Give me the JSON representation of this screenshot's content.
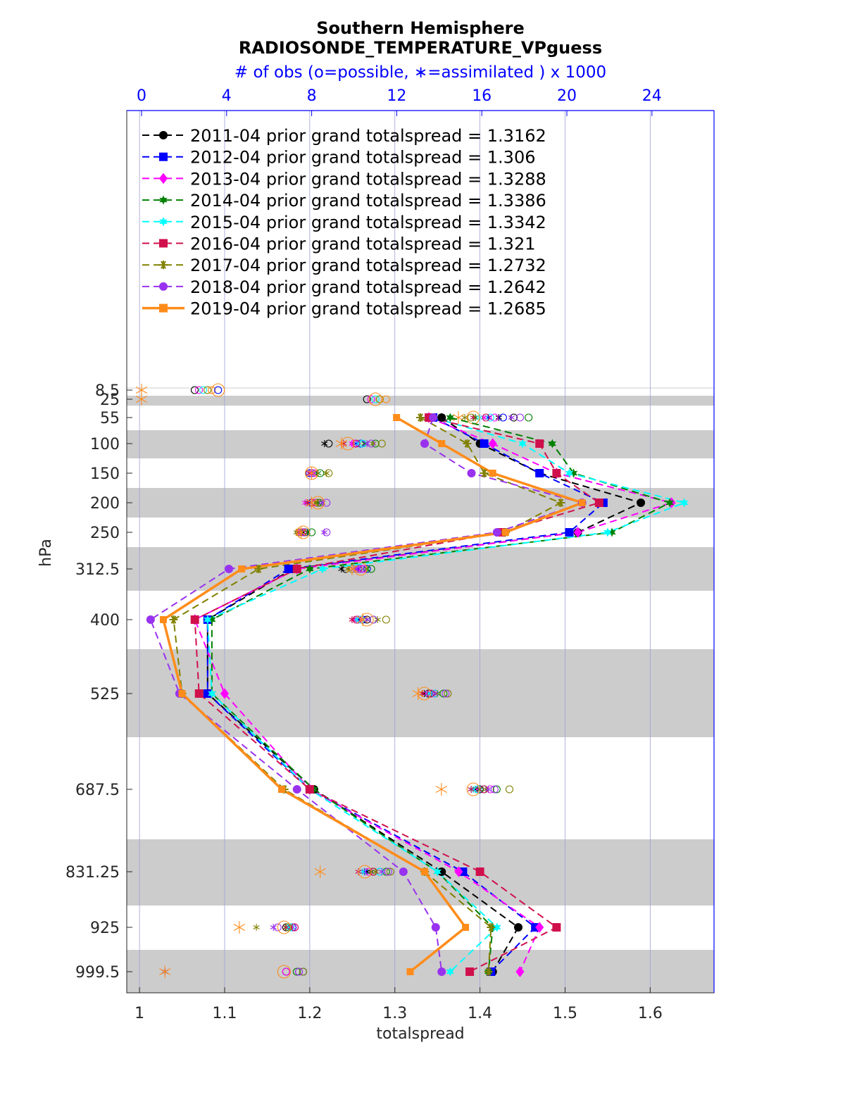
{
  "chart_data": {
    "type": "line",
    "title": "Southern Hemisphere",
    "subtitle": "RADIOSONDE_TEMPERATURE_VPguess",
    "top_axis_label": "# of obs (o=possible, ∗=assimilated ) x 1000",
    "xlabel": "totalspread",
    "ylabel": "hPa",
    "xlim": [
      0.985,
      1.675
    ],
    "x_ticks": [
      1,
      1.1,
      1.2,
      1.3,
      1.4,
      1.5,
      1.6
    ],
    "x_tick_labels": [
      "1",
      "1.1",
      "1.2",
      "1.3",
      "1.4",
      "1.5",
      "1.6"
    ],
    "top_ticks": [
      0,
      4,
      8,
      12,
      16,
      20,
      24
    ],
    "top_tick_labels": [
      "0",
      "4",
      "8",
      "12",
      "16",
      "20",
      "24"
    ],
    "levels": [
      8.5,
      25,
      55,
      100,
      150,
      200,
      250,
      312.5,
      400,
      525,
      687.5,
      831.25,
      925,
      999.5
    ],
    "level_labels": [
      "8.5",
      "25",
      "55",
      "100",
      "150",
      "200",
      "250",
      "312.5",
      "400",
      "525",
      "687.5",
      "831.25",
      "925",
      "999.5"
    ],
    "series": [
      {
        "name": "2011-04 prior grand totalspread = 1.3162",
        "color": "#000000",
        "marker": "circle",
        "style": "dashed",
        "levels": [
          55,
          100,
          150,
          200,
          250,
          312.5,
          400,
          525,
          687.5,
          831.25,
          925,
          999.5
        ],
        "values": [
          1.355,
          1.4,
          1.47,
          1.589,
          1.515,
          1.18,
          1.08,
          1.08,
          1.205,
          1.355,
          1.445,
          1.415
        ],
        "obs_possible_k": [
          17.5,
          8.8,
          8.0,
          8.0,
          7.6,
          9.6,
          10.6,
          13.5,
          15.9,
          10.9,
          6.8,
          6.8
        ],
        "obs_assimilated_k": [
          16.8,
          8.6,
          8.0,
          7.8,
          7.6,
          9.4,
          10.4,
          13.3,
          15.7,
          10.6,
          6.8,
          1.1
        ]
      },
      {
        "name": "2012-04 prior grand totalspread = 1.306",
        "color": "#0000ff",
        "marker": "square",
        "style": "dashed",
        "levels": [
          55,
          100,
          150,
          200,
          250,
          312.5,
          400,
          525,
          687.5,
          831.25,
          925,
          999.5
        ],
        "values": [
          1.345,
          1.405,
          1.47,
          1.545,
          1.505,
          1.175,
          1.08,
          1.08,
          1.2,
          1.38,
          1.465,
          1.413
        ],
        "obs_possible_k": [
          17.0,
          10.3,
          7.9,
          8.0,
          7.7,
          10.6,
          10.4,
          13.8,
          16.1,
          11.2,
          7.1,
          7.6
        ],
        "obs_assimilated_k": [
          16.3,
          10.1,
          7.9,
          7.9,
          7.5,
          10.2,
          10.2,
          13.6,
          15.5,
          10.5,
          7.0,
          1.1
        ]
      },
      {
        "name": "2013-04 prior grand totalspread = 1.3288",
        "color": "#ff00ff",
        "marker": "diamond",
        "style": "dashed",
        "levels": [
          55,
          100,
          150,
          200,
          250,
          312.5,
          400,
          525,
          687.5,
          831.25,
          925,
          999.5
        ],
        "values": [
          1.34,
          1.415,
          1.49,
          1.625,
          1.515,
          1.185,
          1.065,
          1.1,
          1.2,
          1.375,
          1.47,
          1.447
        ],
        "obs_possible_k": [
          16.6,
          10.0,
          8.1,
          8.2,
          7.5,
          10.4,
          10.2,
          13.6,
          16.4,
          10.7,
          7.2,
          6.8
        ],
        "obs_assimilated_k": [
          16.1,
          9.9,
          8.1,
          7.7,
          7.4,
          10.1,
          10.0,
          13.4,
          15.8,
          10.4,
          7.1,
          1.1
        ]
      },
      {
        "name": "2014-04 prior grand totalspread = 1.3386",
        "color": "#008000",
        "marker": "hexagram",
        "style": "dashed",
        "levels": [
          55,
          100,
          150,
          200,
          250,
          312.5,
          400,
          525,
          687.5,
          831.25,
          925,
          999.5
        ],
        "values": [
          1.365,
          1.485,
          1.51,
          1.623,
          1.555,
          1.2,
          1.085,
          1.085,
          1.205,
          1.35,
          1.415,
          1.41
        ],
        "obs_possible_k": [
          18.2,
          11.0,
          8.4,
          8.3,
          8.0,
          10.8,
          10.9,
          14.2,
          16.7,
          11.5,
          6.9,
          7.3
        ],
        "obs_assimilated_k": [
          15.7,
          10.5,
          8.3,
          8.3,
          7.8,
          10.6,
          10.6,
          13.9,
          15.9,
          10.8,
          6.9,
          1.1
        ]
      },
      {
        "name": "2015-04 prior grand totalspread = 1.3342",
        "color": "#00ffff",
        "marker": "hexagram",
        "style": "dashed",
        "levels": [
          55,
          100,
          150,
          200,
          250,
          312.5,
          400,
          525,
          687.5,
          831.25,
          925,
          999.5
        ],
        "values": [
          1.345,
          1.45,
          1.505,
          1.64,
          1.55,
          1.215,
          1.08,
          1.085,
          1.2,
          1.35,
          1.42,
          1.365
        ],
        "obs_possible_k": [
          16.4,
          10.4,
          8.0,
          8.0,
          7.6,
          10.2,
          10.3,
          13.8,
          15.8,
          11.2,
          7.0,
          7.4
        ],
        "obs_assimilated_k": [
          15.9,
          10.2,
          8.0,
          7.8,
          7.5,
          10.0,
          10.1,
          13.5,
          15.6,
          10.4,
          6.9,
          1.1
        ]
      },
      {
        "name": "2016-04 prior grand totalspread = 1.321",
        "color": "#d0104c",
        "marker": "square",
        "style": "dashed",
        "levels": [
          55,
          100,
          150,
          200,
          250,
          312.5,
          400,
          525,
          687.5,
          831.25,
          925,
          999.5
        ],
        "values": [
          1.34,
          1.47,
          1.49,
          1.54,
          1.425,
          1.185,
          1.065,
          1.07,
          1.2,
          1.4,
          1.49,
          1.388
        ],
        "obs_possible_k": [
          16.2,
          10.1,
          8.0,
          8.0,
          7.6,
          10.2,
          10.1,
          13.6,
          16.1,
          10.9,
          7.2,
          7.4
        ],
        "obs_assimilated_k": [
          15.6,
          9.5,
          7.9,
          7.8,
          7.5,
          10.0,
          9.9,
          13.2,
          15.5,
          10.2,
          6.8,
          1.1
        ]
      },
      {
        "name": "2017-04 prior grand totalspread = 1.2732",
        "color": "#808000",
        "marker": "asterisk",
        "style": "dashed",
        "levels": [
          55,
          100,
          150,
          200,
          250,
          312.5,
          400,
          525,
          687.5,
          831.25,
          925,
          999.5
        ],
        "values": [
          1.33,
          1.385,
          1.405,
          1.495,
          1.43,
          1.14,
          1.04,
          1.05,
          1.17,
          1.335,
          1.413,
          1.41
        ],
        "obs_possible_k": [
          15.5,
          11.3,
          8.8,
          8.4,
          7.4,
          9.9,
          11.5,
          14.4,
          17.3,
          11.7,
          6.9,
          7.6
        ],
        "obs_assimilated_k": [
          15.2,
          10.9,
          8.7,
          8.2,
          7.3,
          9.7,
          11.1,
          13.9,
          16.2,
          11.0,
          5.4,
          1.1
        ]
      },
      {
        "name": "2018-04 prior grand totalspread = 1.2642",
        "color": "#9932ee",
        "marker": "circle",
        "style": "dashed",
        "levels": [
          55,
          100,
          150,
          200,
          250,
          312.5,
          400,
          525,
          687.5,
          831.25,
          925,
          999.5
        ],
        "values": [
          1.345,
          1.335,
          1.39,
          1.52,
          1.42,
          1.105,
          1.013,
          1.047,
          1.185,
          1.31,
          1.348,
          1.355
        ],
        "obs_possible_k": [
          17.8,
          10.8,
          8.0,
          8.7,
          8.7,
          10.3,
          10.9,
          14.3,
          16.6,
          11.6,
          6.4,
          7.4
        ],
        "obs_assimilated_k": [
          17.4,
          10.6,
          8.0,
          8.5,
          8.6,
          10.0,
          10.6,
          13.8,
          16.3,
          11.3,
          6.2,
          1.1
        ]
      },
      {
        "name": "2019-04 prior grand totalspread = 1.2685",
        "color": "#ff8c1a",
        "marker": "square",
        "style": "solid",
        "levels": [
          55,
          100,
          150,
          200,
          250,
          312.5,
          400,
          525,
          687.5,
          831.25,
          925,
          999.5
        ],
        "values": [
          1.302,
          1.355,
          1.415,
          1.52,
          1.43,
          1.12,
          1.028,
          1.05,
          1.167,
          1.335,
          1.383,
          1.318
        ],
        "obs_possible_k": [
          15.6,
          9.7,
          8.0,
          8.3,
          7.6,
          10.3,
          10.6,
          13.3,
          15.6,
          10.5,
          6.7,
          6.7
        ],
        "obs_assimilated_k": [
          14.9,
          9.4,
          8.0,
          8.0,
          7.5,
          9.9,
          10.4,
          13.0,
          14.1,
          8.4,
          4.6,
          1.1
        ]
      }
    ],
    "top_level_obs": {
      "levels": [
        8.5,
        25
      ],
      "possible_k": [
        [
          2.5,
          2.7,
          2.9,
          3.1,
          3.3,
          3.6
        ],
        [
          10.6,
          10.8,
          11.0,
          11.2,
          11.5
        ]
      ],
      "orange_possible_k": [
        3.6,
        11.0
      ],
      "orange_assimilated_k": [
        0.0,
        0.0
      ]
    },
    "legend_position": "top-left",
    "grid": "vertical",
    "shaded_level_bands": true
  }
}
